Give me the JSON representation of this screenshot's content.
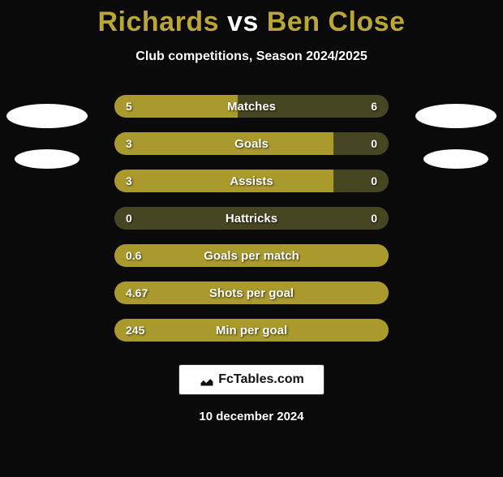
{
  "title": {
    "player1": "Richards",
    "vs": "vs",
    "player2": "Ben Close"
  },
  "subtitle": "Club competitions, Season 2024/2025",
  "colors": {
    "p1_bar": "#aa9a2d",
    "p2_bar": "#474622",
    "background": "#0a0a0a",
    "title_accent": "#bba631",
    "text": "#ffffff"
  },
  "stats": [
    {
      "label": "Matches",
      "left_val": "5",
      "right_val": "6",
      "left_pct": 45,
      "right_pct": 55,
      "left_color": "#aa9a2d",
      "right_color": "#474622"
    },
    {
      "label": "Goals",
      "left_val": "3",
      "right_val": "0",
      "left_pct": 80,
      "right_pct": 20,
      "left_color": "#aa9a2d",
      "right_color": "#474622"
    },
    {
      "label": "Assists",
      "left_val": "3",
      "right_val": "0",
      "left_pct": 80,
      "right_pct": 20,
      "left_color": "#aa9a2d",
      "right_color": "#474622"
    },
    {
      "label": "Hattricks",
      "left_val": "0",
      "right_val": "0",
      "left_pct": 50,
      "right_pct": 50,
      "left_color": "#474622",
      "right_color": "#474622"
    },
    {
      "label": "Goals per match",
      "left_val": "0.6",
      "right_val": "",
      "left_pct": 100,
      "right_pct": 0,
      "left_color": "#aa9a2d",
      "right_color": "#474622"
    },
    {
      "label": "Shots per goal",
      "left_val": "4.67",
      "right_val": "",
      "left_pct": 100,
      "right_pct": 0,
      "left_color": "#aa9a2d",
      "right_color": "#474622"
    },
    {
      "label": "Min per goal",
      "left_val": "245",
      "right_val": "",
      "left_pct": 100,
      "right_pct": 0,
      "left_color": "#aa9a2d",
      "right_color": "#474622"
    }
  ],
  "footer_brand": "FcTables.com",
  "footer_date": "10 december 2024"
}
